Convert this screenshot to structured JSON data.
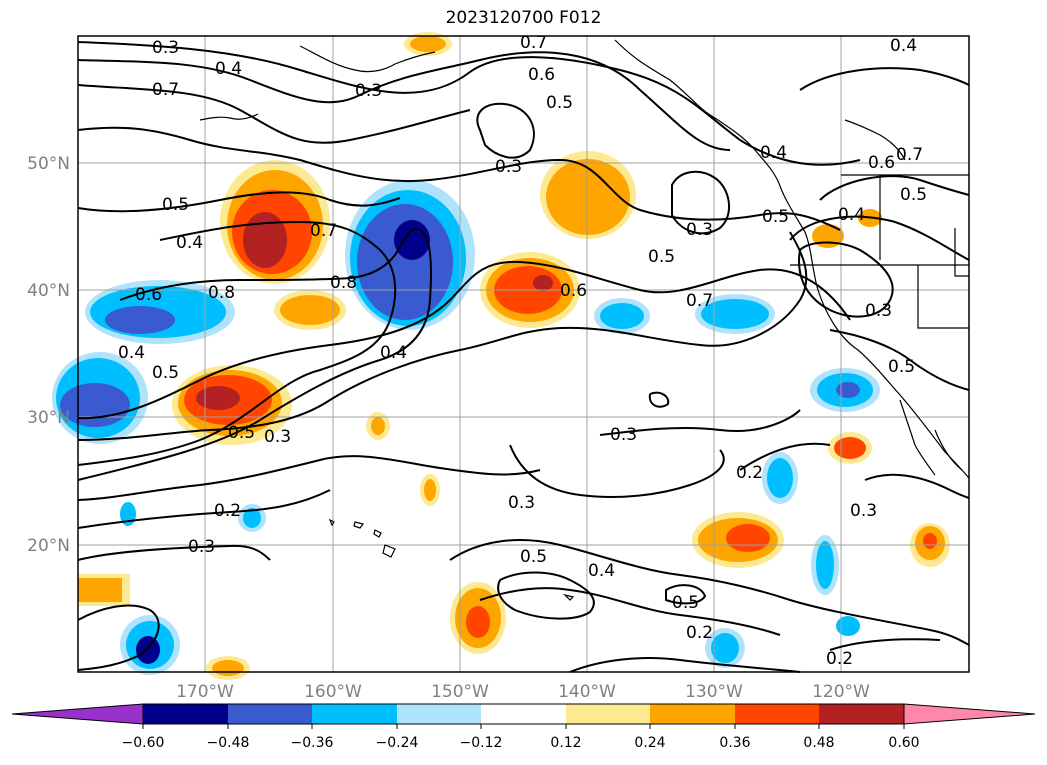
{
  "title": "2023120700 F012",
  "map": {
    "lat_labels": [
      "50°N",
      "40°N",
      "30°N",
      "20°N"
    ],
    "lon_labels": [
      "170°W",
      "160°W",
      "150°W",
      "140°W",
      "130°W",
      "120°W"
    ],
    "contour_labels": [
      "0.3",
      "0.4",
      "0.7",
      "0.3",
      "0.7",
      "0.6",
      "0.5",
      "0.4",
      "0.3",
      "0.5",
      "0.4",
      "0.7",
      "0.8",
      "0.6",
      "0.8",
      "0.4",
      "0.5",
      "0.5",
      "0.3",
      "0.4",
      "0.5",
      "0.6",
      "0.7",
      "0.5",
      "0.3",
      "0.4",
      "0.3",
      "0.2",
      "0.3",
      "0.5",
      "0.4",
      "0.5",
      "0.2",
      "0.3",
      "0.3",
      "0.2",
      "0.5",
      "0.6",
      "0.7",
      "0.4",
      "0.5",
      "0.3",
      "0.2"
    ]
  },
  "colorbar": {
    "ticks": [
      "−0.60",
      "−0.48",
      "−0.36",
      "−0.24",
      "−0.12",
      "0.12",
      "0.24",
      "0.36",
      "0.48",
      "0.60"
    ],
    "colors": [
      "#9932cc",
      "#00008b",
      "#3a5bd0",
      "#00bfff",
      "#afe3fb",
      "#ffffff",
      "#fde992",
      "#ffa500",
      "#ff4500",
      "#b22222",
      "#ff88aa"
    ],
    "extend": "both"
  }
}
